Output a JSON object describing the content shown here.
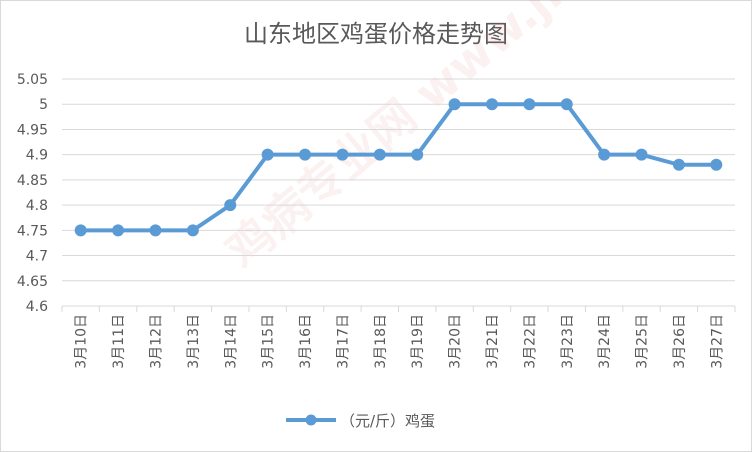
{
  "chart_data": {
    "type": "line",
    "title": "山东地区鸡蛋价格走势图",
    "categories": [
      "3月10日",
      "3月11日",
      "3月12日",
      "3月13日",
      "3月14日",
      "3月15日",
      "3月16日",
      "3月17日",
      "3月18日",
      "3月19日",
      "3月20日",
      "3月21日",
      "3月22日",
      "3月23日",
      "3月24日",
      "3月25日",
      "3月26日",
      "3月27日"
    ],
    "series": [
      {
        "name": "（元/斤）鸡蛋",
        "values": [
          4.75,
          4.75,
          4.75,
          4.75,
          4.8,
          4.9,
          4.9,
          4.9,
          4.9,
          4.9,
          5.0,
          5.0,
          5.0,
          5.0,
          4.9,
          4.9,
          4.88,
          4.88
        ]
      }
    ],
    "ylim": [
      4.6,
      5.05
    ],
    "yticks": [
      "4.6",
      "4.65",
      "4.7",
      "4.75",
      "4.8",
      "4.85",
      "4.9",
      "4.95",
      "5",
      "5.05"
    ],
    "grid": true,
    "legend": "bottom",
    "colors": {
      "line": "#5b9bd5",
      "grid": "#d9d9d9",
      "text": "#595959"
    }
  },
  "watermark": "鸡病专业网 www.jbzyw.com"
}
